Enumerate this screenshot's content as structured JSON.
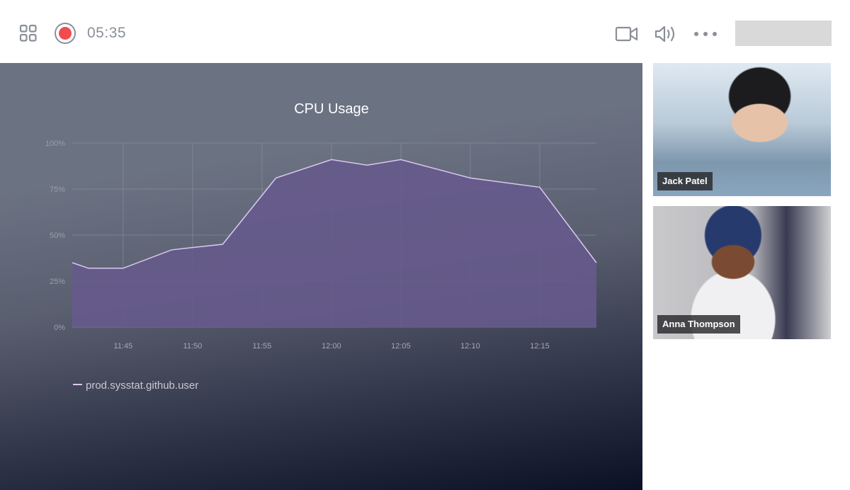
{
  "topbar": {
    "layout_icon": "grid-icon",
    "record_icon": "record-icon",
    "timer": "05:35",
    "camera_icon": "video-camera-icon",
    "speaker_icon": "speaker-icon",
    "more_icon": "more-horizontal-icon",
    "record_color": "#f24b4f"
  },
  "participants": [
    {
      "name": "Jack Patel"
    },
    {
      "name": "Anna Thompson"
    }
  ],
  "chart_data": {
    "type": "area",
    "title": "CPU Usage",
    "xlabel": "",
    "ylabel": "",
    "x_ticks": [
      "11:45",
      "11:50",
      "11:55",
      "12:00",
      "12:05",
      "12:10",
      "12:15"
    ],
    "y_ticks": [
      "0%",
      "25%",
      "50%",
      "75%",
      "100%"
    ],
    "xlim": [
      "11:41:20",
      "12:19:05"
    ],
    "ylim": [
      0,
      100
    ],
    "grid": true,
    "legend_placement": "bottom-left",
    "series": [
      {
        "name": "prod.sysstat.github.user",
        "color": "#d9c8f0",
        "fill": "#665a8c",
        "x": [
          "11:41:20",
          "11:42:30",
          "11:45:00",
          "11:48:30",
          "11:52:10",
          "11:56:00",
          "12:00:00",
          "12:02:35",
          "12:05:00",
          "12:10:00",
          "12:15:00",
          "12:19:05"
        ],
        "values": [
          35,
          32,
          32,
          42,
          45,
          81,
          91,
          88,
          91,
          81,
          76,
          35
        ]
      }
    ]
  }
}
